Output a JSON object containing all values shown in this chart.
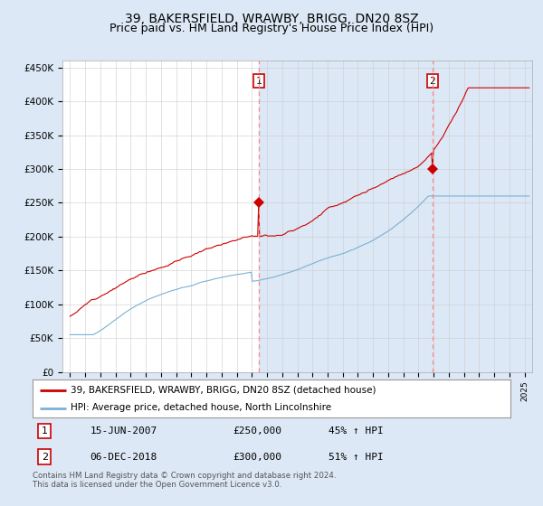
{
  "title": "39, BAKERSFIELD, WRAWBY, BRIGG, DN20 8SZ",
  "subtitle": "Price paid vs. HM Land Registry's House Price Index (HPI)",
  "ylabel_ticks": [
    "£0",
    "£50K",
    "£100K",
    "£150K",
    "£200K",
    "£250K",
    "£300K",
    "£350K",
    "£400K",
    "£450K"
  ],
  "ytick_values": [
    0,
    50000,
    100000,
    150000,
    200000,
    250000,
    300000,
    350000,
    400000,
    450000
  ],
  "ylim": [
    0,
    460000
  ],
  "xlim_start": 1994.5,
  "xlim_end": 2025.5,
  "red_line_color": "#cc0000",
  "blue_line_color": "#7ab0d4",
  "dashed_line_color": "#ff8888",
  "background_color": "#dce8f5",
  "plot_bg_color": "#dce8f5",
  "inner_bg_color": "#ffffff",
  "shaded_bg_color": "#dce8f5",
  "grid_color": "#cccccc",
  "marker1_x": 2007.46,
  "marker2_x": 2018.92,
  "marker1_sale_y": 250000,
  "marker2_sale_y": 300000,
  "legend_label_red": "39, BAKERSFIELD, WRAWBY, BRIGG, DN20 8SZ (detached house)",
  "legend_label_blue": "HPI: Average price, detached house, North Lincolnshire",
  "table_row1": [
    "1",
    "15-JUN-2007",
    "£250,000",
    "45% ↑ HPI"
  ],
  "table_row2": [
    "2",
    "06-DEC-2018",
    "£300,000",
    "51% ↑ HPI"
  ],
  "footnote": "Contains HM Land Registry data © Crown copyright and database right 2024.\nThis data is licensed under the Open Government Licence v3.0.",
  "title_fontsize": 10,
  "subtitle_fontsize": 9
}
